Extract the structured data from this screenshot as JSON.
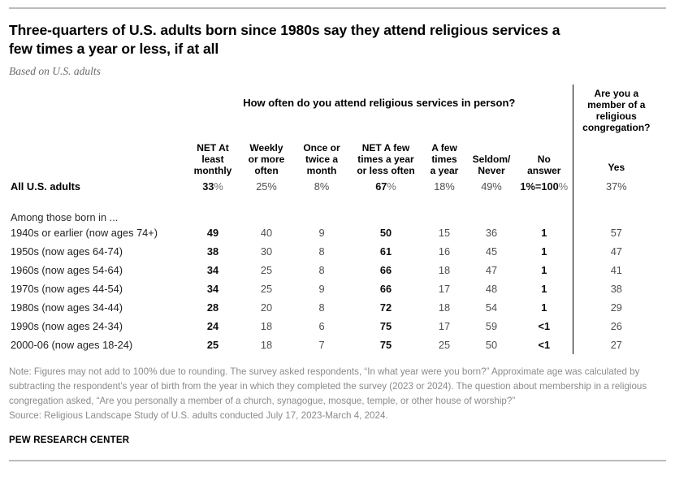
{
  "header": {
    "title": "Three-quarters of U.S. adults born since 1980s say they attend religious services a\nfew times a year or less, if at all",
    "subtitle": "Based on U.S. adults"
  },
  "table": {
    "group_header": "How often do you attend religious services in person?",
    "member_header": "Are you a\nmember of a\nreligious\ncongregation?",
    "yes_label": "Yes",
    "columns": [
      "NET At\nleast\nmonthly",
      "Weekly\nor more\noften",
      "Once or\ntwice a\nmonth",
      "NET A few\ntimes a year\nor less often",
      "A few\ntimes\na year",
      "Seldom/\nNever",
      "No\nanswer"
    ],
    "bold_columns": [
      0,
      3,
      6
    ],
    "rows": [
      {
        "label": "All U.S. adults",
        "bold": true,
        "values": [
          "33%",
          "25%",
          "8%",
          "67%",
          "18%",
          "49%",
          "1%=100%",
          "37%"
        ]
      },
      {
        "section": "Among those born in ..."
      },
      {
        "label": "1940s or earlier (now ages 74+)",
        "values": [
          "49",
          "40",
          "9",
          "50",
          "15",
          "36",
          "1",
          "57"
        ]
      },
      {
        "label": "1950s (now ages 64-74)",
        "values": [
          "38",
          "30",
          "8",
          "61",
          "16",
          "45",
          "1",
          "47"
        ]
      },
      {
        "label": "1960s (now ages 54-64)",
        "values": [
          "34",
          "25",
          "8",
          "66",
          "18",
          "47",
          "1",
          "41"
        ]
      },
      {
        "label": "1970s (now ages 44-54)",
        "values": [
          "34",
          "25",
          "9",
          "66",
          "17",
          "48",
          "1",
          "38"
        ]
      },
      {
        "label": "1980s (now ages 34-44)",
        "values": [
          "28",
          "20",
          "8",
          "72",
          "18",
          "54",
          "1",
          "29"
        ]
      },
      {
        "label": "1990s (now ages 24-34)",
        "values": [
          "24",
          "18",
          "6",
          "75",
          "17",
          "59",
          "<1",
          "26"
        ]
      },
      {
        "label": "2000-06 (now ages 18-24)",
        "values": [
          "25",
          "18",
          "7",
          "75",
          "25",
          "50",
          "<1",
          "27"
        ]
      }
    ]
  },
  "footer": {
    "note": "Note: Figures may not add to 100% due to rounding. The survey asked respondents, “In what year were you born?” Approximate age was calculated by subtracting the respondent’s year of birth from the year in which they completed the survey (2023 or 2024). The question about membership in a religious congregation asked, “Are you personally a member of a church, synagogue, mosque, temple, or other house of worship?”\nSource: Religious Landscape Study of U.S. adults conducted July 17, 2023-March 4, 2024.",
    "brand": "PEW RESEARCH CENTER"
  },
  "colors": {
    "accent_black": "#000000",
    "value_gray": "#4f4f4f",
    "note_gray": "#8b8b8b",
    "rule_gray": "#bcbcbc"
  },
  "chart_data": {
    "type": "table",
    "title": "Three-quarters of U.S. adults born since 1980s say they attend religious services a few times a year or less, if at all",
    "subtitle": "Based on U.S. adults",
    "column_groups": [
      "How often do you attend religious services in person?",
      "Are you a member of a religious congregation?"
    ],
    "columns": [
      "NET At least monthly",
      "Weekly or more often",
      "Once or twice a month",
      "NET A few times a year or less often",
      "A few times a year",
      "Seldom/Never",
      "No answer",
      "Yes"
    ],
    "rows": [
      {
        "label": "All U.S. adults",
        "values": [
          "33%",
          "25%",
          "8%",
          "67%",
          "18%",
          "49%",
          "1%=100%",
          "37%"
        ]
      },
      {
        "label": "1940s or earlier (now ages 74+)",
        "values": [
          49,
          40,
          9,
          50,
          15,
          36,
          1,
          57
        ]
      },
      {
        "label": "1950s (now ages 64-74)",
        "values": [
          38,
          30,
          8,
          61,
          16,
          45,
          1,
          47
        ]
      },
      {
        "label": "1960s (now ages 54-64)",
        "values": [
          34,
          25,
          8,
          66,
          18,
          47,
          1,
          41
        ]
      },
      {
        "label": "1970s (now ages 44-54)",
        "values": [
          34,
          25,
          9,
          66,
          17,
          48,
          1,
          38
        ]
      },
      {
        "label": "1980s (now ages 34-44)",
        "values": [
          28,
          20,
          8,
          72,
          18,
          54,
          1,
          29
        ]
      },
      {
        "label": "1990s (now ages 24-34)",
        "values": [
          24,
          18,
          6,
          75,
          17,
          59,
          "<1",
          26
        ]
      },
      {
        "label": "2000-06 (now ages 18-24)",
        "values": [
          25,
          18,
          7,
          75,
          25,
          50,
          "<1",
          27
        ]
      }
    ],
    "section_label": "Among those born in ..."
  }
}
